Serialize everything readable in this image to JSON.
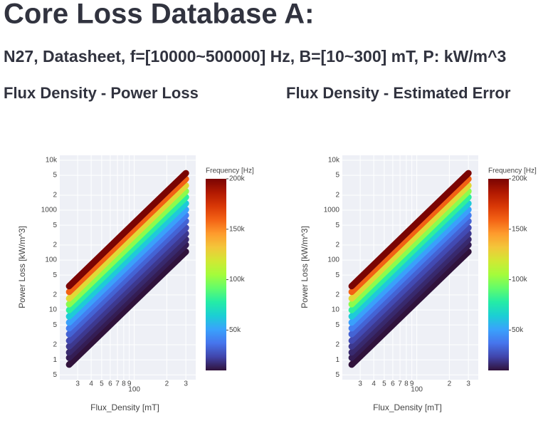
{
  "header": {
    "title": "Core Loss Database A:",
    "subtitle": "N27, Datasheet, f=[10000~500000] Hz, B=[10~300] mT, P: kW/m^3"
  },
  "chart_data": [
    {
      "type": "line",
      "title": "Flux Density - Power Loss",
      "xlabel": "Flux_Density [mT]",
      "ylabel": "Power Loss [kW/m^3]",
      "log_x": true,
      "log_y": true,
      "grid": true,
      "x": [
        25,
        50,
        100,
        200,
        300
      ],
      "xlim": [
        20.5,
        370
      ],
      "ylim": [
        0.4,
        12600
      ],
      "xticks": [
        {
          "value": 30,
          "label": "3"
        },
        {
          "value": 40,
          "label": "4"
        },
        {
          "value": 50,
          "label": "5"
        },
        {
          "value": 60,
          "label": "6"
        },
        {
          "value": 70,
          "label": "7"
        },
        {
          "value": 80,
          "label": "8"
        },
        {
          "value": 90,
          "label": "9"
        },
        100,
        {
          "value": 200,
          "label": "2"
        },
        {
          "value": 300,
          "label": "3"
        }
      ],
      "yticks": [
        {
          "value": 0.5,
          "label": "5"
        },
        1,
        2,
        5,
        10,
        {
          "value": 20,
          "label": "2"
        },
        {
          "value": 50,
          "label": "5"
        },
        100,
        {
          "value": 200,
          "label": "2"
        },
        {
          "value": 500,
          "label": "5"
        },
        1000,
        {
          "value": 2000,
          "label": "2"
        },
        {
          "value": 5000,
          "label": "5"
        },
        {
          "value": 10000,
          "label": "10k"
        }
      ],
      "colorbar": {
        "title": "Frequency [Hz]",
        "lim": [
          10000,
          200000
        ],
        "ticks": [
          {
            "value": 50000,
            "label": "50k"
          },
          {
            "value": 100000,
            "label": "100k"
          },
          {
            "value": 150000,
            "label": "150k"
          },
          {
            "value": 200000,
            "label": "200k"
          }
        ],
        "colorscale": [
          "#30123b",
          "#4145ab",
          "#4675ed",
          "#39a2fc",
          "#1bcfd4",
          "#24eca6",
          "#61fc6c",
          "#a4fc3b",
          "#d1e834",
          "#f3c63a",
          "#fe9b2d",
          "#f36315",
          "#d93806",
          "#b11901",
          "#7a0403"
        ]
      },
      "series": [
        {
          "frequency": 10000,
          "values": [
            0.8,
            3.43,
            14.7,
            63,
            147
          ]
        },
        {
          "frequency": 13000,
          "values": [
            1.1,
            4.72,
            20.2,
            86.7,
            202
          ]
        },
        {
          "frequency": 16000,
          "values": [
            1.41,
            6.05,
            25.9,
            111,
            259
          ]
        },
        {
          "frequency": 20000,
          "values": [
            1.85,
            7.94,
            34,
            146,
            340
          ]
        },
        {
          "frequency": 25000,
          "values": [
            2.42,
            10.4,
            44.5,
            191,
            445
          ]
        },
        {
          "frequency": 32000,
          "values": [
            3.27,
            14,
            60.2,
            258,
            602
          ]
        },
        {
          "frequency": 40000,
          "values": [
            4.28,
            18.4,
            78.8,
            337,
            788
          ]
        },
        {
          "frequency": 50000,
          "values": [
            5.6,
            24,
            103,
            441,
            1030
          ]
        },
        {
          "frequency": 63000,
          "values": [
            7.42,
            31.8,
            137,
            585,
            1365
          ]
        },
        {
          "frequency": 80000,
          "values": [
            9.92,
            42.6,
            183,
            782,
            1825
          ]
        },
        {
          "frequency": 100000,
          "values": [
            13,
            55.8,
            239,
            1024,
            2392
          ]
        },
        {
          "frequency": 125000,
          "values": [
            17,
            72.9,
            313,
            1340,
            3128
          ]
        },
        {
          "frequency": 160000,
          "values": [
            23,
            98.7,
            423,
            1812,
            4232
          ]
        },
        {
          "frequency": 200000,
          "values": [
            30,
            129,
            552,
            2364,
            5520
          ]
        }
      ]
    },
    {
      "type": "line",
      "title": "Flux Density - Estimated Error",
      "xlabel": "Flux_Density [mT]",
      "ylabel": "Power Loss [kW/m^3]",
      "log_x": true,
      "log_y": true,
      "grid": true,
      "x": [
        25,
        50,
        100,
        200,
        300
      ],
      "xlim": [
        20.5,
        370
      ],
      "ylim": [
        0.4,
        12600
      ],
      "xticks": [
        {
          "value": 30,
          "label": "3"
        },
        {
          "value": 40,
          "label": "4"
        },
        {
          "value": 50,
          "label": "5"
        },
        {
          "value": 60,
          "label": "6"
        },
        {
          "value": 70,
          "label": "7"
        },
        {
          "value": 80,
          "label": "8"
        },
        {
          "value": 90,
          "label": "9"
        },
        100,
        {
          "value": 200,
          "label": "2"
        },
        {
          "value": 300,
          "label": "3"
        }
      ],
      "yticks": [
        {
          "value": 0.5,
          "label": "5"
        },
        1,
        2,
        5,
        10,
        {
          "value": 20,
          "label": "2"
        },
        {
          "value": 50,
          "label": "5"
        },
        100,
        {
          "value": 200,
          "label": "2"
        },
        {
          "value": 500,
          "label": "5"
        },
        1000,
        {
          "value": 2000,
          "label": "2"
        },
        {
          "value": 5000,
          "label": "5"
        },
        {
          "value": 10000,
          "label": "10k"
        }
      ],
      "colorbar": {
        "title": "Frequency [Hz]",
        "lim": [
          10000,
          200000
        ],
        "ticks": [
          {
            "value": 50000,
            "label": "50k"
          },
          {
            "value": 100000,
            "label": "100k"
          },
          {
            "value": 150000,
            "label": "150k"
          },
          {
            "value": 200000,
            "label": "200k"
          }
        ],
        "colorscale": [
          "#30123b",
          "#4145ab",
          "#4675ed",
          "#39a2fc",
          "#1bcfd4",
          "#24eca6",
          "#61fc6c",
          "#a4fc3b",
          "#d1e834",
          "#f3c63a",
          "#fe9b2d",
          "#f36315",
          "#d93806",
          "#b11901",
          "#7a0403"
        ]
      },
      "series": [
        {
          "frequency": 10000,
          "values": [
            0.8,
            3.43,
            14.7,
            63,
            147
          ]
        },
        {
          "frequency": 13000,
          "values": [
            1.1,
            4.72,
            20.2,
            86.7,
            202
          ]
        },
        {
          "frequency": 16000,
          "values": [
            1.41,
            6.05,
            25.9,
            111,
            259
          ]
        },
        {
          "frequency": 20000,
          "values": [
            1.85,
            7.94,
            34,
            146,
            340
          ]
        },
        {
          "frequency": 25000,
          "values": [
            2.42,
            10.4,
            44.5,
            191,
            445
          ]
        },
        {
          "frequency": 32000,
          "values": [
            3.27,
            14,
            60.2,
            258,
            602
          ]
        },
        {
          "frequency": 40000,
          "values": [
            4.28,
            18.4,
            78.8,
            337,
            788
          ]
        },
        {
          "frequency": 50000,
          "values": [
            5.6,
            24,
            103,
            441,
            1030
          ]
        },
        {
          "frequency": 63000,
          "values": [
            7.42,
            31.8,
            137,
            585,
            1365
          ]
        },
        {
          "frequency": 80000,
          "values": [
            9.92,
            42.6,
            183,
            782,
            1825
          ]
        },
        {
          "frequency": 100000,
          "values": [
            13,
            55.8,
            239,
            1024,
            2392
          ]
        },
        {
          "frequency": 125000,
          "values": [
            17,
            72.9,
            313,
            1340,
            3128
          ]
        },
        {
          "frequency": 160000,
          "values": [
            23,
            98.7,
            423,
            1812,
            4232
          ]
        },
        {
          "frequency": 200000,
          "values": [
            30,
            129,
            552,
            2364,
            5520
          ]
        }
      ]
    }
  ]
}
